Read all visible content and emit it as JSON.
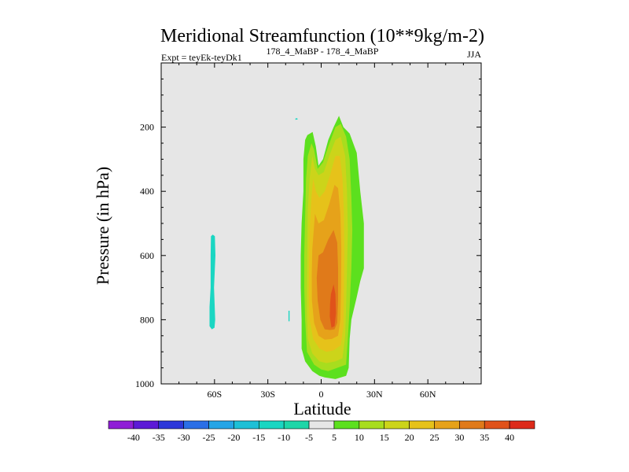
{
  "chart_data": {
    "type": "contour",
    "title": "Meridional Streamfunction (10**9kg/m-2)",
    "subtitle_left": "Expt = teyEk-teyDk1",
    "subtitle_center": "178_4_MaBP - 178_4_MaBP",
    "subtitle_right": "JJA",
    "xlabel": "Latitude",
    "ylabel": "Pressure (in hPa)",
    "xlim": [
      -90,
      90
    ],
    "ylim": [
      1000,
      0
    ],
    "x_ticks": [
      {
        "value": -60,
        "label": "60S"
      },
      {
        "value": -30,
        "label": "30S"
      },
      {
        "value": 0,
        "label": "0"
      },
      {
        "value": 30,
        "label": "30N"
      },
      {
        "value": 60,
        "label": "60N"
      }
    ],
    "y_ticks": [
      {
        "value": 200,
        "label": "200"
      },
      {
        "value": 400,
        "label": "400"
      },
      {
        "value": 600,
        "label": "600"
      },
      {
        "value": 800,
        "label": "800"
      },
      {
        "value": 1000,
        "label": "1000"
      }
    ],
    "background_color": "#e6e6e6",
    "colorbar": {
      "labels": [
        "-40",
        "-35",
        "-30",
        "-25",
        "-20",
        "-15",
        "-10",
        "-5",
        "5",
        "10",
        "15",
        "20",
        "25",
        "30",
        "35",
        "40"
      ],
      "colors": [
        "#8f1ed6",
        "#5c1ad6",
        "#2d38d9",
        "#2b6fe6",
        "#25a5e6",
        "#1ec0d6",
        "#1ad6c2",
        "#1ed6a8",
        "#e6e6e6",
        "#5ce01e",
        "#a8dd1e",
        "#ccd41a",
        "#e6c21a",
        "#e6a21a",
        "#e07a1a",
        "#e0521a",
        "#dd2a1a"
      ]
    },
    "features": [
      {
        "name": "negative-cell-southern",
        "level": -10,
        "color": "#1ad6c2",
        "outline": [
          [
            -61,
            535
          ],
          [
            -59.8,
            540
          ],
          [
            -59.5,
            600
          ],
          [
            -60.3,
            700
          ],
          [
            -59.6,
            800
          ],
          [
            -60,
            825
          ],
          [
            -61.5,
            830
          ],
          [
            -62.8,
            820
          ],
          [
            -62.8,
            760
          ],
          [
            -62.2,
            700
          ],
          [
            -62.2,
            600
          ],
          [
            -62,
            540
          ]
        ]
      },
      {
        "name": "positive-cell-outer",
        "level": 5,
        "color": "#5ce01e",
        "outline": [
          [
            -7.8,
            225
          ],
          [
            -4.8,
            215
          ],
          [
            -3,
            260
          ],
          [
            -1.5,
            320
          ],
          [
            1,
            300
          ],
          [
            4,
            240
          ],
          [
            7,
            200
          ],
          [
            10,
            165
          ],
          [
            12.5,
            200
          ],
          [
            16,
            220
          ],
          [
            20,
            280
          ],
          [
            22,
            400
          ],
          [
            24,
            500
          ],
          [
            24,
            640
          ],
          [
            22,
            680
          ],
          [
            20,
            730
          ],
          [
            17,
            800
          ],
          [
            16,
            860
          ],
          [
            15.5,
            950
          ],
          [
            14,
            975
          ],
          [
            8,
            985
          ],
          [
            2,
            980
          ],
          [
            -1,
            975
          ],
          [
            -5,
            960
          ],
          [
            -9,
            930
          ],
          [
            -11,
            890
          ],
          [
            -11,
            800
          ],
          [
            -11.5,
            700
          ],
          [
            -11.5,
            600
          ],
          [
            -11,
            500
          ],
          [
            -10,
            400
          ],
          [
            -10,
            300
          ],
          [
            -9,
            240
          ]
        ]
      },
      {
        "name": "positive-cell-level-10",
        "level": 10,
        "color": "#a8dd1e",
        "outline": [
          [
            -5.5,
            250
          ],
          [
            -4,
            270
          ],
          [
            -2,
            330
          ],
          [
            1,
            310
          ],
          [
            4,
            260
          ],
          [
            8,
            200
          ],
          [
            11,
            190
          ],
          [
            14,
            230
          ],
          [
            16,
            300
          ],
          [
            17,
            420
          ],
          [
            17.5,
            520
          ],
          [
            17,
            640
          ],
          [
            16,
            760
          ],
          [
            15,
            860
          ],
          [
            14,
            940
          ],
          [
            9,
            950
          ],
          [
            4,
            960
          ],
          [
            0,
            955
          ],
          [
            -4,
            940
          ],
          [
            -8,
            900
          ],
          [
            -9,
            800
          ],
          [
            -9.5,
            700
          ],
          [
            -9.5,
            600
          ],
          [
            -9,
            480
          ],
          [
            -8.5,
            360
          ],
          [
            -7.5,
            290
          ]
        ]
      },
      {
        "name": "positive-cell-level-15",
        "level": 15,
        "color": "#ccd41a",
        "outline": [
          [
            -5,
            290
          ],
          [
            -3.5,
            330
          ],
          [
            -1.5,
            350
          ],
          [
            1.5,
            340
          ],
          [
            4.5,
            290
          ],
          [
            8,
            240
          ],
          [
            11,
            230
          ],
          [
            13.5,
            290
          ],
          [
            14.5,
            400
          ],
          [
            15,
            520
          ],
          [
            14.5,
            650
          ],
          [
            14,
            760
          ],
          [
            13.5,
            850
          ],
          [
            12,
            920
          ],
          [
            8,
            930
          ],
          [
            3,
            935
          ],
          [
            -1,
            930
          ],
          [
            -5,
            905
          ],
          [
            -7.5,
            860
          ],
          [
            -8,
            780
          ],
          [
            -8,
            680
          ],
          [
            -7.8,
            580
          ],
          [
            -7.5,
            460
          ],
          [
            -6.5,
            360
          ]
        ]
      },
      {
        "name": "positive-cell-level-20",
        "level": 20,
        "color": "#e6c21a",
        "outline": [
          [
            -4.5,
            360
          ],
          [
            -3,
            400
          ],
          [
            -1,
            420
          ],
          [
            2,
            400
          ],
          [
            5,
            350
          ],
          [
            8,
            290
          ],
          [
            10.5,
            290
          ],
          [
            12,
            360
          ],
          [
            12.8,
            470
          ],
          [
            13,
            600
          ],
          [
            12.8,
            720
          ],
          [
            12.5,
            820
          ],
          [
            11,
            880
          ],
          [
            7,
            895
          ],
          [
            3,
            900
          ],
          [
            -1,
            890
          ],
          [
            -4.5,
            860
          ],
          [
            -6.5,
            800
          ],
          [
            -7,
            720
          ],
          [
            -6.8,
            620
          ],
          [
            -6.3,
            500
          ],
          [
            -5.5,
            420
          ]
        ]
      },
      {
        "name": "positive-cell-level-25",
        "level": 25,
        "color": "#e6a21a",
        "outline": [
          [
            -3.5,
            470
          ],
          [
            -1.5,
            500
          ],
          [
            1.5,
            490
          ],
          [
            4.5,
            440
          ],
          [
            7.5,
            380
          ],
          [
            9.5,
            390
          ],
          [
            10.8,
            470
          ],
          [
            11.3,
            580
          ],
          [
            11.2,
            700
          ],
          [
            10.8,
            800
          ],
          [
            9.5,
            850
          ],
          [
            6,
            860
          ],
          [
            2,
            862
          ],
          [
            -1.5,
            850
          ],
          [
            -4,
            810
          ],
          [
            -5.2,
            740
          ],
          [
            -5.3,
            660
          ],
          [
            -5,
            580
          ]
        ]
      },
      {
        "name": "positive-cell-level-30",
        "level": 30,
        "color": "#e07a1a",
        "outline": [
          [
            -1.5,
            600
          ],
          [
            1,
            590
          ],
          [
            4,
            550
          ],
          [
            7,
            520
          ],
          [
            9,
            560
          ],
          [
            9.5,
            640
          ],
          [
            9.5,
            740
          ],
          [
            9,
            810
          ],
          [
            7.5,
            830
          ],
          [
            5,
            832
          ],
          [
            2,
            830
          ],
          [
            -0.5,
            800
          ],
          [
            -2,
            740
          ],
          [
            -2.5,
            670
          ]
        ]
      },
      {
        "name": "positive-cell-level-35",
        "level": 35,
        "color": "#e0521a",
        "outline": [
          [
            5.5,
            720
          ],
          [
            7,
            690
          ],
          [
            8,
            720
          ],
          [
            8.3,
            780
          ],
          [
            7.5,
            820
          ],
          [
            5.8,
            825
          ],
          [
            4.8,
            790
          ],
          [
            5,
            750
          ]
        ]
      },
      {
        "name": "speck-upper",
        "level": -10,
        "color": "#1ad6c2",
        "outline": [
          [
            -14.5,
            173
          ],
          [
            -13.5,
            172
          ],
          [
            -13.2,
            176
          ],
          [
            -14.5,
            177
          ]
        ]
      },
      {
        "name": "speck-lower",
        "level": -10,
        "color": "#1ad6c2",
        "outline": [
          [
            -18.4,
            772
          ],
          [
            -17.8,
            772
          ],
          [
            -17.8,
            805
          ],
          [
            -18.4,
            805
          ]
        ]
      }
    ]
  }
}
